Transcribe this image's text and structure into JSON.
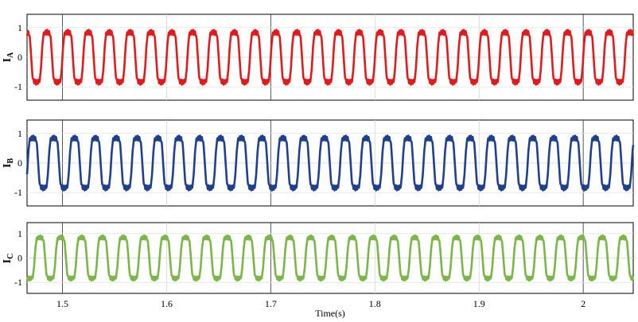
{
  "chart_data": {
    "type": "line",
    "xlabel": "Time(s)",
    "xlim": [
      1.466,
      2.048
    ],
    "xticks": [
      1.5,
      1.6,
      1.7,
      1.8,
      1.9,
      2
    ],
    "xtick_labels": [
      "1.5",
      "1.6",
      "1.7",
      "1.8",
      "1.9",
      "2"
    ],
    "grid": true,
    "waveform": {
      "shape": "six-step quasi-square current with ripple",
      "frequency_hz": 50,
      "peak": 1.2,
      "step_level": 0.3,
      "phase_shift_deg": [
        0,
        -120,
        120
      ]
    },
    "panels": [
      {
        "ylabel_main": "I",
        "ylabel_sub": "A",
        "ylim": [
          -1.45,
          1.45
        ],
        "yticks": [
          1,
          0,
          -1
        ],
        "ytick_labels": [
          "1",
          "0",
          "-1"
        ],
        "color": "#e31a1c",
        "phase_deg": 0
      },
      {
        "ylabel_main": "I",
        "ylabel_sub": "B",
        "ylim": [
          -1.45,
          1.45
        ],
        "yticks": [
          1,
          0,
          -1
        ],
        "ytick_labels": [
          "1",
          "0",
          "-1"
        ],
        "color": "#1f3f8f",
        "phase_deg": -120
      },
      {
        "ylabel_main": "I",
        "ylabel_sub": "C",
        "ylim": [
          -1.45,
          1.45
        ],
        "yticks": [
          1,
          0,
          -1
        ],
        "ytick_labels": [
          "1",
          "0",
          "-1"
        ],
        "color": "#7ab648",
        "phase_deg": 120
      }
    ]
  }
}
